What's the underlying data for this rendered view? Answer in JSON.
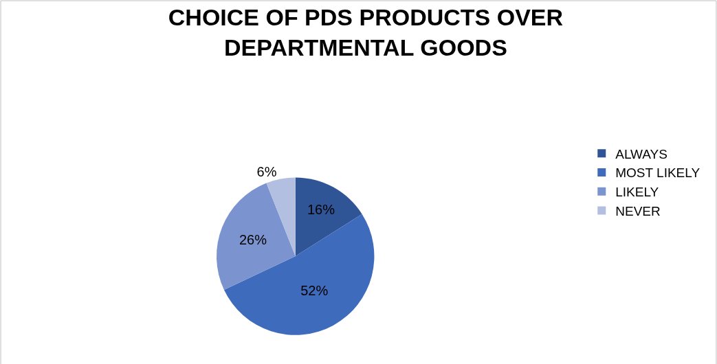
{
  "chart_data": {
    "type": "pie",
    "title": "CHOICE OF PDS PRODUCTS OVER DEPARTMENTAL GOODS",
    "categories": [
      "ALWAYS",
      "MOST LIKELY",
      "LIKELY",
      "NEVER"
    ],
    "values": [
      16,
      52,
      26,
      6
    ],
    "value_labels": [
      "16%",
      "52%",
      "26%",
      "6%"
    ],
    "colors": [
      "#2f5597",
      "#3f6bbd",
      "#7b93cf",
      "#b3bfe0"
    ],
    "legend": "right"
  }
}
